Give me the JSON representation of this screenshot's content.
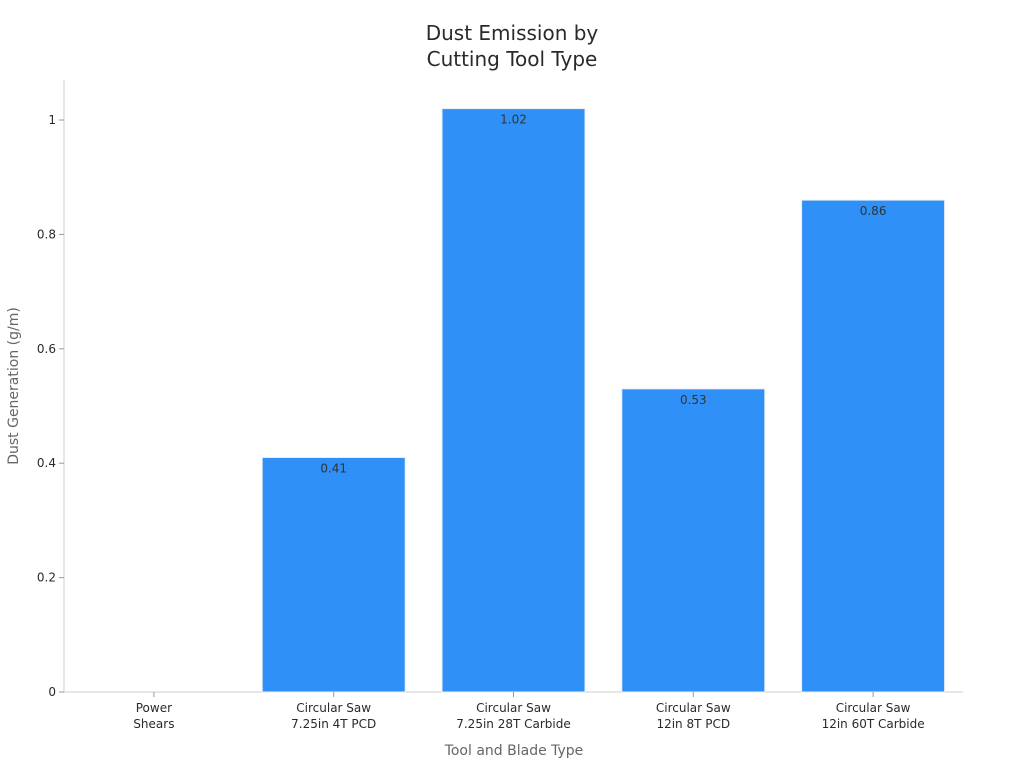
{
  "chart_data": {
    "type": "bar",
    "title_lines": [
      "Dust Emission by",
      "Cutting Tool Type"
    ],
    "xlabel": "Tool and Blade Type",
    "ylabel": "Dust Generation (g/m)",
    "categories": [
      [
        "Power",
        "Shears"
      ],
      [
        "Circular Saw",
        "7.25in 4T PCD"
      ],
      [
        "Circular Saw",
        "7.25in 28T Carbide"
      ],
      [
        "Circular Saw",
        "12in 8T PCD"
      ],
      [
        "Circular Saw",
        "12in 60T Carbide"
      ]
    ],
    "values": [
      0,
      0.41,
      1.02,
      0.53,
      0.86
    ],
    "data_labels": [
      "",
      "0.41",
      "1.02",
      "0.53",
      "0.86"
    ],
    "yticks": [
      0,
      0.2,
      0.4,
      0.6,
      0.8,
      1
    ],
    "ytick_labels": [
      "0",
      "0.2",
      "0.4",
      "0.6",
      "0.8",
      "1"
    ],
    "ylim": [
      0,
      1.07
    ],
    "bar_color": "#2f91f7",
    "grid": false
  }
}
